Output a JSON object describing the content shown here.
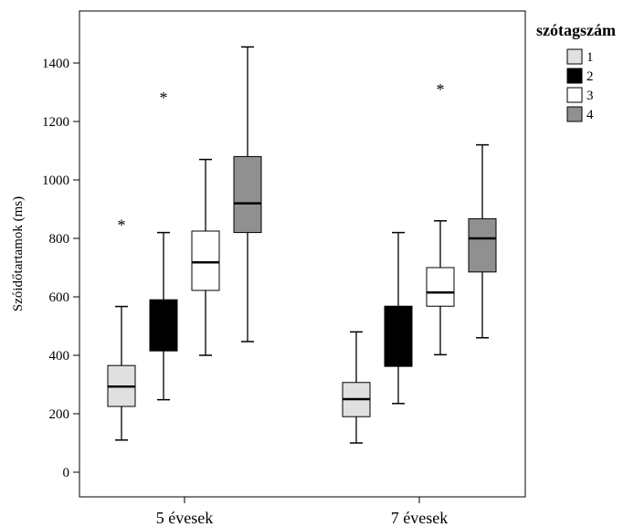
{
  "chart_data": {
    "type": "boxplot",
    "ylabel": "Szóidőtartamok (ms)",
    "ylim": [
      -80,
      1560
    ],
    "yticks": [
      0,
      200,
      400,
      600,
      800,
      1000,
      1200,
      1400
    ],
    "categories": [
      "5 évesek",
      "7 évesek"
    ],
    "legend": {
      "title": "szótagszám",
      "position": "right"
    },
    "series": [
      {
        "name": "1",
        "color": "#e0e0e0",
        "boxes": [
          {
            "min": 110,
            "q1": 225,
            "median": 293,
            "q3": 365,
            "max": 567,
            "outliers": [
              855
            ]
          },
          {
            "min": 100,
            "q1": 190,
            "median": 250,
            "q3": 307,
            "max": 480,
            "outliers": []
          }
        ]
      },
      {
        "name": "2",
        "color": "#000000",
        "boxes": [
          {
            "min": 248,
            "q1": 415,
            "median": 500,
            "q3": 590,
            "max": 820,
            "outliers": [
              1290
            ]
          },
          {
            "min": 235,
            "q1": 362,
            "median": 440,
            "q3": 568,
            "max": 820,
            "outliers": []
          }
        ]
      },
      {
        "name": "3",
        "color": "#ffffff",
        "boxes": [
          {
            "min": 400,
            "q1": 622,
            "median": 718,
            "q3": 825,
            "max": 1070,
            "outliers": []
          },
          {
            "min": 402,
            "q1": 568,
            "median": 615,
            "q3": 700,
            "max": 860,
            "outliers": [
              1318
            ]
          }
        ]
      },
      {
        "name": "4",
        "color": "#909090",
        "boxes": [
          {
            "min": 447,
            "q1": 820,
            "median": 920,
            "q3": 1080,
            "max": 1455,
            "outliers": []
          },
          {
            "min": 460,
            "q1": 685,
            "median": 800,
            "q3": 867,
            "max": 1120,
            "outliers": []
          }
        ]
      }
    ],
    "outlier_marker": "*",
    "grid": false
  }
}
